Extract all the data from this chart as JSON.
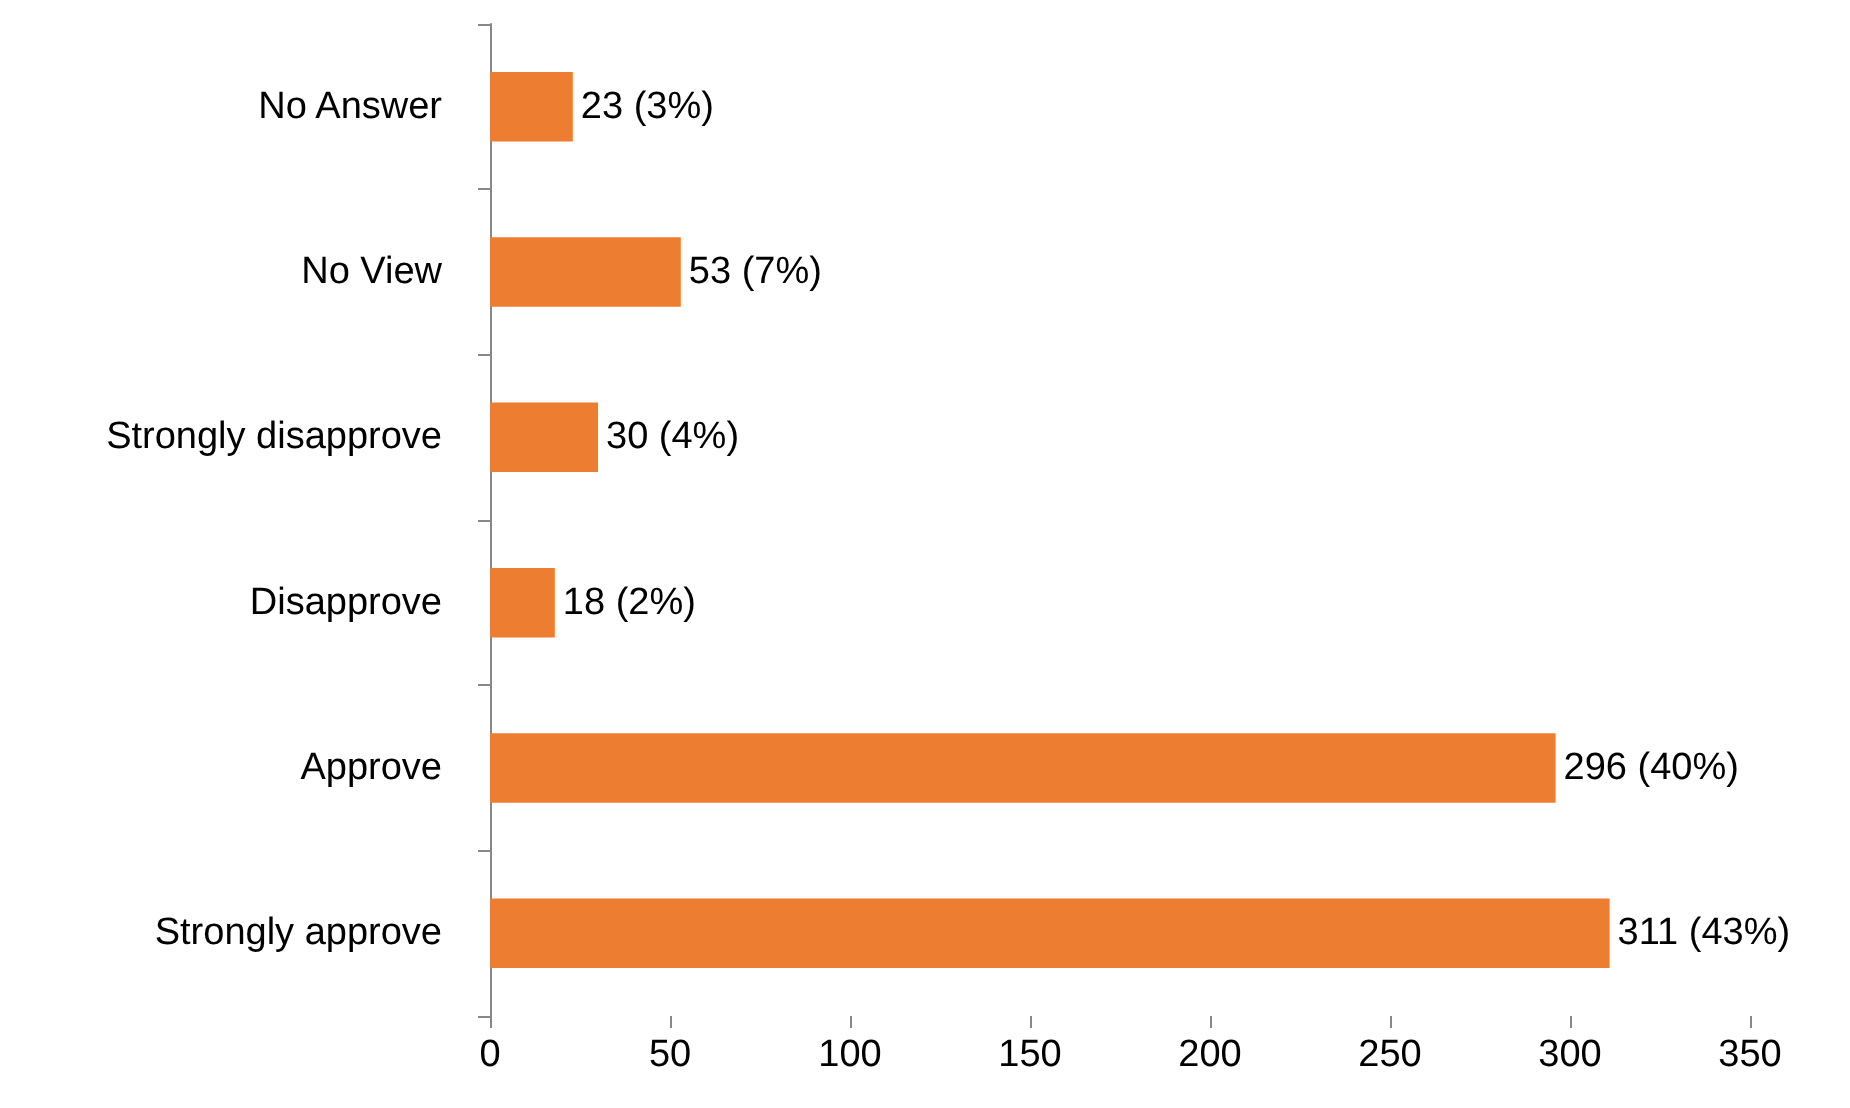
{
  "chart_data": {
    "type": "bar",
    "orientation": "horizontal",
    "categories": [
      "No Answer",
      "No View",
      "Strongly disapprove",
      "Disapprove",
      "Approve",
      "Strongly approve"
    ],
    "values": [
      23,
      53,
      30,
      18,
      296,
      311
    ],
    "value_labels": [
      "23 (3%)",
      "53 (7%)",
      "30 (4%)",
      "18 (2%)",
      "296 (40%)",
      "311 (43%)"
    ],
    "color": "#ed7d31",
    "xlim": [
      0,
      350
    ],
    "xticks": [
      0,
      50,
      100,
      150,
      200,
      250,
      300,
      350
    ]
  }
}
